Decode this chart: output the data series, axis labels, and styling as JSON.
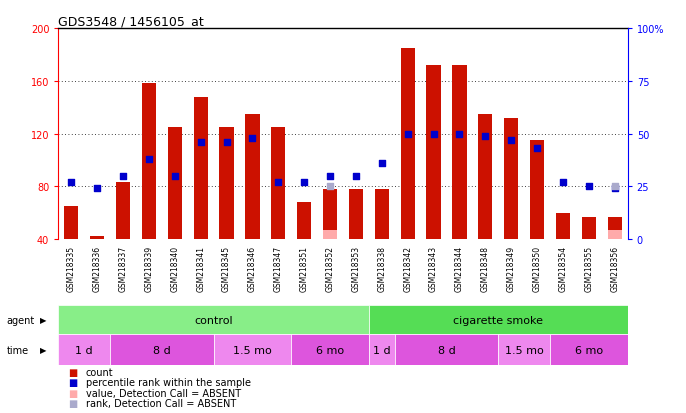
{
  "title": "GDS3548 / 1456105_at",
  "samples": [
    "GSM218335",
    "GSM218336",
    "GSM218337",
    "GSM218339",
    "GSM218340",
    "GSM218341",
    "GSM218345",
    "GSM218346",
    "GSM218347",
    "GSM218351",
    "GSM218352",
    "GSM218353",
    "GSM218338",
    "GSM218342",
    "GSM218343",
    "GSM218344",
    "GSM218348",
    "GSM218349",
    "GSM218350",
    "GSM218354",
    "GSM218355",
    "GSM218356"
  ],
  "count_values": [
    65,
    42,
    83,
    158,
    125,
    148,
    125,
    135,
    125,
    68,
    78,
    78,
    78,
    185,
    172,
    172,
    135,
    132,
    115,
    60,
    57,
    57
  ],
  "rank_values": [
    27,
    24,
    30,
    38,
    30,
    46,
    46,
    48,
    27,
    27,
    30,
    30,
    36,
    50,
    50,
    50,
    49,
    47,
    43,
    27,
    25,
    24
  ],
  "absent_count": [
    null,
    null,
    null,
    null,
    null,
    null,
    null,
    null,
    null,
    null,
    47,
    null,
    null,
    null,
    null,
    null,
    null,
    null,
    null,
    null,
    null,
    47
  ],
  "absent_rank": [
    null,
    null,
    null,
    null,
    null,
    null,
    null,
    null,
    null,
    null,
    25,
    null,
    null,
    null,
    null,
    null,
    null,
    null,
    null,
    null,
    null,
    25
  ],
  "ylim_left": [
    40,
    200
  ],
  "ylim_right": [
    0,
    100
  ],
  "yticks_left": [
    40,
    80,
    120,
    160,
    200
  ],
  "yticks_right": [
    0,
    25,
    50,
    75,
    100
  ],
  "ytick_labels_left": [
    "40",
    "80",
    "120",
    "160",
    "200"
  ],
  "ytick_labels_right": [
    "0",
    "25",
    "50",
    "75",
    "100%"
  ],
  "grid_values": [
    80,
    120,
    160
  ],
  "bar_color": "#cc1100",
  "rank_color": "#0000cc",
  "absent_bar_color": "#ffaaaa",
  "absent_rank_color": "#aaaacc",
  "agent_groups": [
    {
      "label": "control",
      "start": 0,
      "end": 12,
      "color": "#88ee88"
    },
    {
      "label": "cigarette smoke",
      "start": 12,
      "end": 22,
      "color": "#55dd55"
    }
  ],
  "time_groups": [
    {
      "label": "1 d",
      "start": 0,
      "end": 2,
      "color": "#ee88ee"
    },
    {
      "label": "8 d",
      "start": 2,
      "end": 6,
      "color": "#dd55dd"
    },
    {
      "label": "1.5 mo",
      "start": 6,
      "end": 9,
      "color": "#ee88ee"
    },
    {
      "label": "6 mo",
      "start": 9,
      "end": 12,
      "color": "#dd55dd"
    },
    {
      "label": "1 d",
      "start": 12,
      "end": 13,
      "color": "#ee88ee"
    },
    {
      "label": "8 d",
      "start": 13,
      "end": 17,
      "color": "#dd55dd"
    },
    {
      "label": "1.5 mo",
      "start": 17,
      "end": 19,
      "color": "#ee88ee"
    },
    {
      "label": "6 mo",
      "start": 19,
      "end": 22,
      "color": "#dd55dd"
    }
  ],
  "background_color": "#ffffff",
  "plot_bg_color": "#ffffff",
  "grid_color": "#000000",
  "bar_width": 0.55,
  "rank_marker_size": 5
}
